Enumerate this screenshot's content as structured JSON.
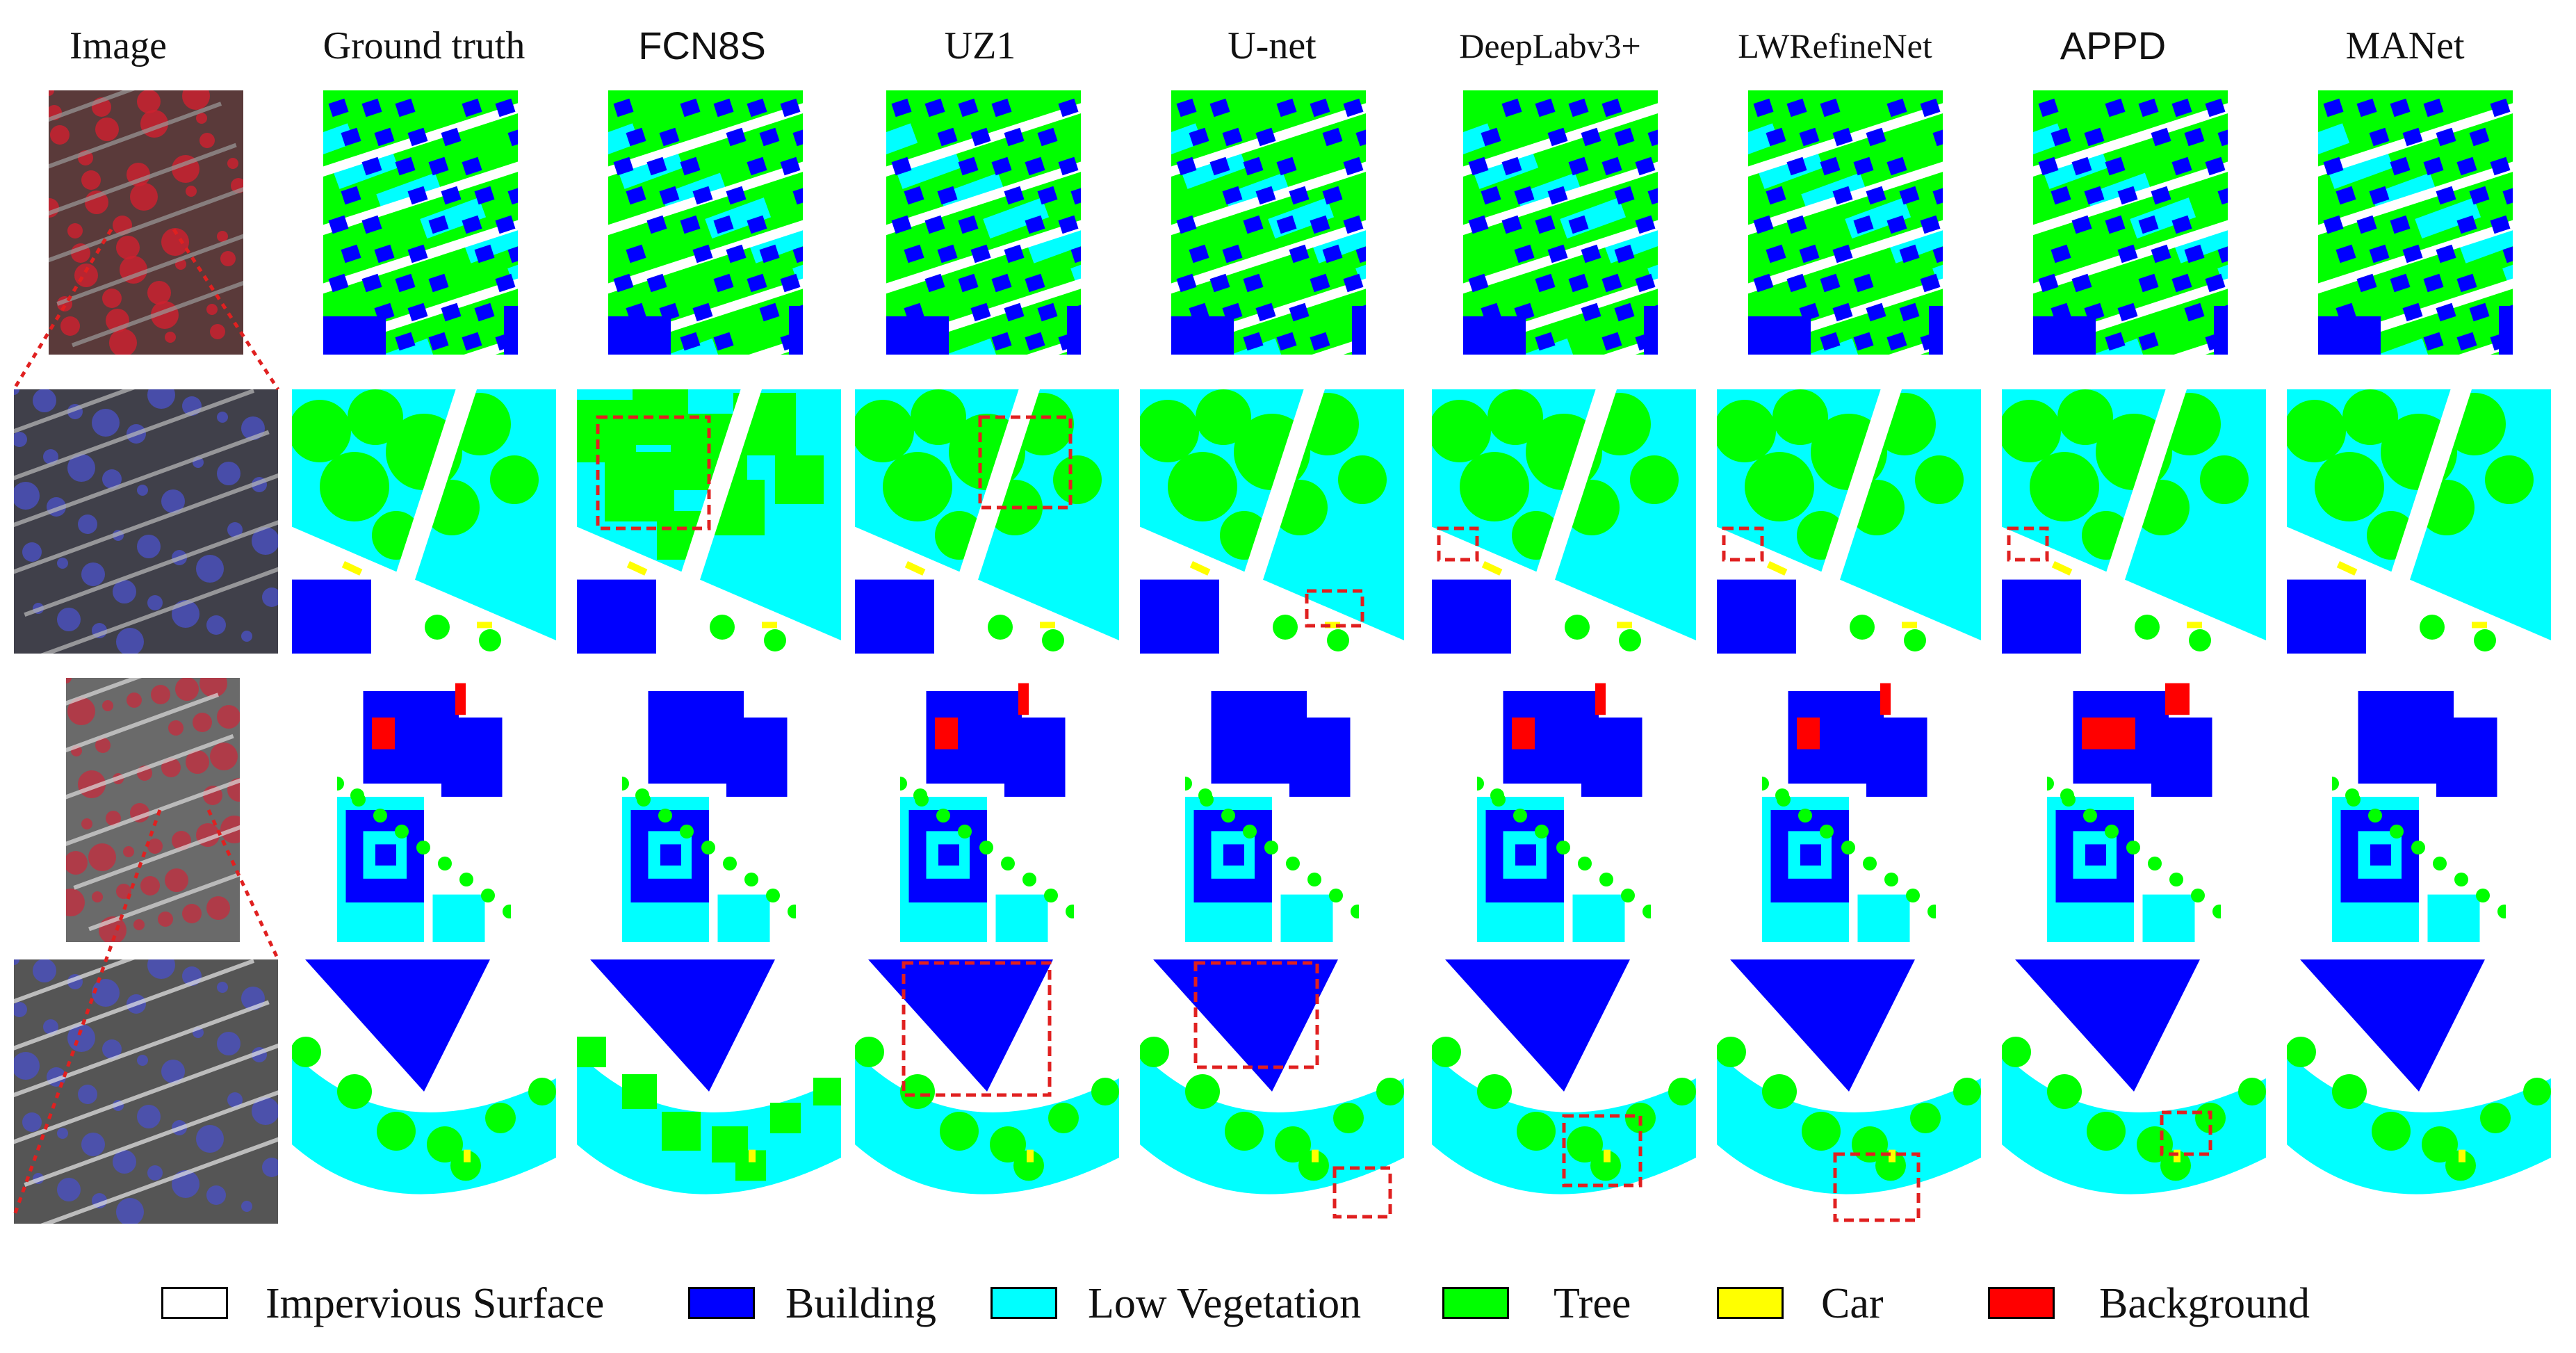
{
  "columns": [
    {
      "key": "image",
      "label": "Image"
    },
    {
      "key": "gt",
      "label": "Ground truth"
    },
    {
      "key": "fcn8s",
      "label": "FCN8S"
    },
    {
      "key": "uz1",
      "label": "UZ1"
    },
    {
      "key": "unet",
      "label": "U-net"
    },
    {
      "key": "deeplab",
      "label": "DeepLabv3+"
    },
    {
      "key": "lwrefinenet",
      "label": "LWRefineNet"
    },
    {
      "key": "appd",
      "label": "APPD"
    },
    {
      "key": "manet",
      "label": "MANet"
    }
  ],
  "legend": [
    {
      "key": "impervious",
      "label": "Impervious Surface",
      "color": "#ffffff"
    },
    {
      "key": "building",
      "label": "Building",
      "color": "#0000ff"
    },
    {
      "key": "lowveg",
      "label": "Low Vegetation",
      "color": "#00ffff"
    },
    {
      "key": "tree",
      "label": "Tree",
      "color": "#00ff00"
    },
    {
      "key": "car",
      "label": "Car",
      "color": "#ffff00"
    },
    {
      "key": "background",
      "label": "Background",
      "color": "#ff0000"
    }
  ],
  "highlight_color": "#e02020",
  "zoom_line_color": "#e02020"
}
